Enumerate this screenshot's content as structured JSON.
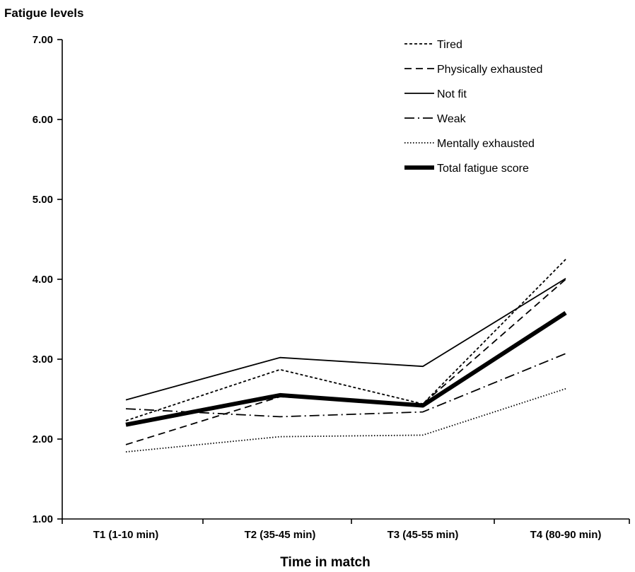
{
  "chart_data": {
    "type": "line",
    "ylabel": "Fatigue levels",
    "xlabel": "Time in match",
    "categories": [
      "T1 (1-10 min)",
      "T2 (35-45 min)",
      "T3 (45-55 min)",
      "T4 (80-90 min)"
    ],
    "ylim": [
      1.0,
      7.0
    ],
    "yticks": [
      "1.00",
      "2.00",
      "3.00",
      "4.00",
      "5.00",
      "6.00",
      "7.00"
    ],
    "grid": false,
    "legend_position": "top-right",
    "series": [
      {
        "name": "Tired",
        "values": [
          2.23,
          2.87,
          2.44,
          4.25
        ],
        "dash": "4,3",
        "width": 1.8
      },
      {
        "name": "Physically exhausted",
        "values": [
          1.93,
          2.53,
          2.44,
          4.0
        ],
        "dash": "10,6",
        "width": 1.8
      },
      {
        "name": "Not fit",
        "values": [
          2.49,
          3.02,
          2.91,
          4.01
        ],
        "dash": "",
        "width": 1.8
      },
      {
        "name": "Weak",
        "values": [
          2.38,
          2.28,
          2.34,
          3.07
        ],
        "dash": "14,5,2,5",
        "width": 1.8
      },
      {
        "name": "Mentally exhausted",
        "values": [
          1.84,
          2.03,
          2.05,
          2.63
        ],
        "dash": "1.5,2.5",
        "width": 1.8
      },
      {
        "name": "Total fatigue score",
        "values": [
          2.18,
          2.55,
          2.42,
          3.58
        ],
        "dash": "",
        "width": 6
      }
    ]
  }
}
